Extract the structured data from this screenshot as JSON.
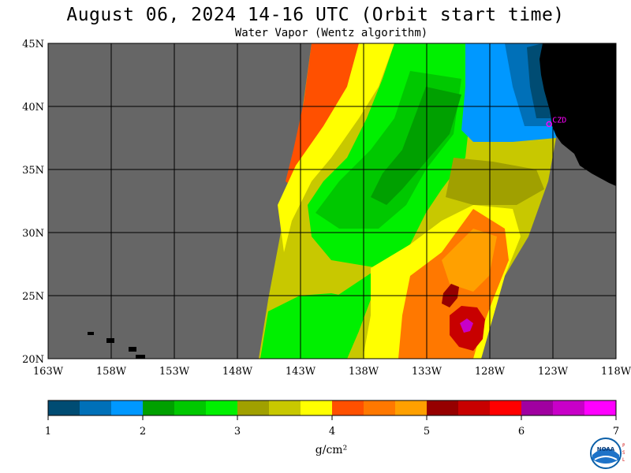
{
  "header": {
    "title": "August 06, 2024  14-16 UTC  (Orbit start time)",
    "subtitle": "Water Vapor (Wentz algorithm)"
  },
  "map": {
    "lon_range": [
      -163,
      -118
    ],
    "lat_range": [
      20,
      45
    ],
    "x_ticks": [
      {
        "lon": -163,
        "label": "163W"
      },
      {
        "lon": -158,
        "label": "158W"
      },
      {
        "lon": -153,
        "label": "153W"
      },
      {
        "lon": -148,
        "label": "148W"
      },
      {
        "lon": -143,
        "label": "143W"
      },
      {
        "lon": -138,
        "label": "138W"
      },
      {
        "lon": -133,
        "label": "133W"
      },
      {
        "lon": -128,
        "label": "128W"
      },
      {
        "lon": -123,
        "label": "123W"
      },
      {
        "lon": -118,
        "label": "118W"
      }
    ],
    "y_ticks": [
      {
        "lat": 45,
        "label": "45N"
      },
      {
        "lat": 40,
        "label": "40N"
      },
      {
        "lat": 35,
        "label": "35N"
      },
      {
        "lat": 30,
        "label": "30N"
      },
      {
        "lat": 25,
        "label": "25N"
      },
      {
        "lat": 20,
        "label": "20N"
      }
    ],
    "station": {
      "label": "CZD",
      "lon": -123.3,
      "lat": 38.6,
      "color": "#ff00ff"
    },
    "colors": {
      "ocean_no_data": "#666666",
      "land": "#000000",
      "grid": "#000000"
    }
  },
  "colorbar": {
    "unit": "g/cm²",
    "range": [
      1,
      7
    ],
    "colors": [
      "#004c73",
      "#0070b8",
      "#0098ff",
      "#00a000",
      "#00c800",
      "#00f000",
      "#a0a000",
      "#c8c800",
      "#ffff00",
      "#ff5000",
      "#ff7800",
      "#ffa000",
      "#960000",
      "#c80000",
      "#ff0000",
      "#a000a0",
      "#c800c8",
      "#ff00ff"
    ],
    "labels": [
      "1",
      "2",
      "3",
      "4",
      "5",
      "6",
      "7"
    ]
  },
  "logo": {
    "text": "NOAA",
    "side_letters": [
      "P",
      "S",
      "L"
    ]
  }
}
